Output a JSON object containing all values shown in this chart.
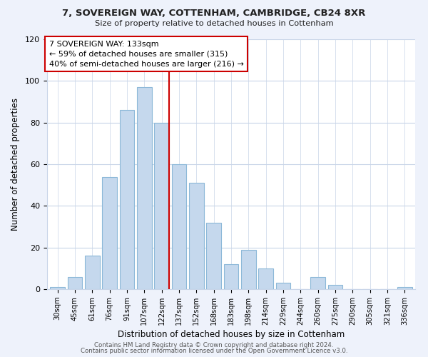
{
  "title1": "7, SOVEREIGN WAY, COTTENHAM, CAMBRIDGE, CB24 8XR",
  "title2": "Size of property relative to detached houses in Cottenham",
  "xlabel": "Distribution of detached houses by size in Cottenham",
  "ylabel": "Number of detached properties",
  "bar_labels": [
    "30sqm",
    "45sqm",
    "61sqm",
    "76sqm",
    "91sqm",
    "107sqm",
    "122sqm",
    "137sqm",
    "152sqm",
    "168sqm",
    "183sqm",
    "198sqm",
    "214sqm",
    "229sqm",
    "244sqm",
    "260sqm",
    "275sqm",
    "290sqm",
    "305sqm",
    "321sqm",
    "336sqm"
  ],
  "bar_values": [
    1,
    6,
    16,
    54,
    86,
    97,
    80,
    60,
    51,
    32,
    12,
    19,
    10,
    3,
    0,
    6,
    2,
    0,
    0,
    0,
    1
  ],
  "bar_color": "#c5d8ed",
  "bar_edge_color": "#8cb8d8",
  "vline_x_index": 6.42,
  "vline_color": "#cc0000",
  "annotation_box_text": "7 SOVEREIGN WAY: 133sqm\n← 59% of detached houses are smaller (315)\n40% of semi-detached houses are larger (216) →",
  "ylim": [
    0,
    120
  ],
  "yticks": [
    0,
    20,
    40,
    60,
    80,
    100,
    120
  ],
  "footer1": "Contains HM Land Registry data © Crown copyright and database right 2024.",
  "footer2": "Contains public sector information licensed under the Open Government Licence v3.0.",
  "bg_color": "#eef2fb",
  "plot_bg_color": "#ffffff",
  "grid_color": "#c8d5e8"
}
